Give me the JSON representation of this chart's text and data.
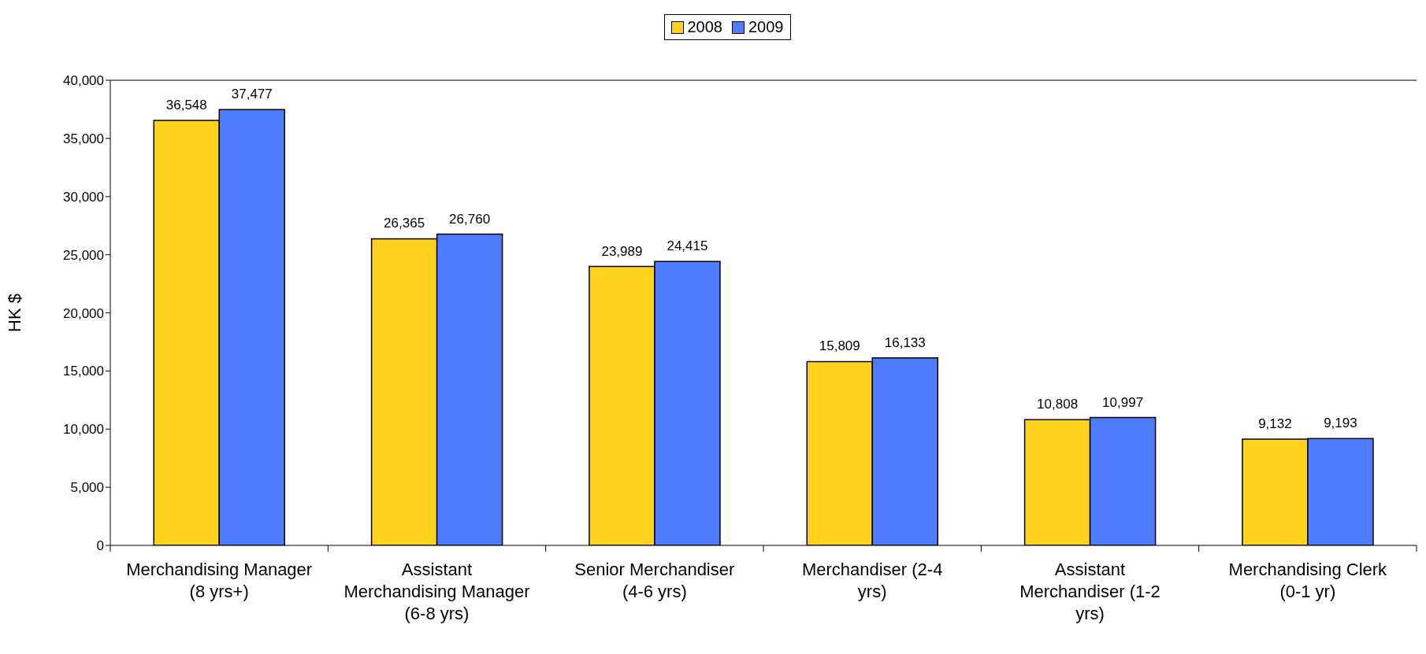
{
  "chart_data": {
    "type": "bar",
    "ylabel": "HK $",
    "categories": [
      "Merchandising Manager (8 yrs+)",
      "Assistant Merchandising Manager (6-8 yrs)",
      "Senior Merchandiser (4-6 yrs)",
      "Merchandiser (2-4 yrs)",
      "Assistant Merchandiser (1-2 yrs)",
      "Merchandising Clerk (0-1 yr)"
    ],
    "series": [
      {
        "name": "2008",
        "color": "#ffd21f",
        "values": [
          36548,
          26365,
          23989,
          15809,
          10808,
          9132
        ],
        "value_labels": [
          "36,548",
          "26,365",
          "23,989",
          "15,809",
          "10,808",
          "9,132"
        ]
      },
      {
        "name": "2009",
        "color": "#4f7bff",
        "values": [
          37477,
          26760,
          24415,
          16133,
          10997,
          9193
        ],
        "value_labels": [
          "37,477",
          "26,760",
          "24,415",
          "16,133",
          "10,997",
          "9,193"
        ]
      }
    ],
    "ylim": [
      0,
      40000
    ],
    "yticks": [
      {
        "value": 0,
        "label": "0"
      },
      {
        "value": 5000,
        "label": "5,000"
      },
      {
        "value": 10000,
        "label": "10,000"
      },
      {
        "value": 15000,
        "label": "15,000"
      },
      {
        "value": 20000,
        "label": "20,000"
      },
      {
        "value": 25000,
        "label": "25,000"
      },
      {
        "value": 30000,
        "label": "30,000"
      },
      {
        "value": 35000,
        "label": "35,000"
      },
      {
        "value": 40000,
        "label": "40,000"
      }
    ],
    "grid": false,
    "legend": "top"
  }
}
